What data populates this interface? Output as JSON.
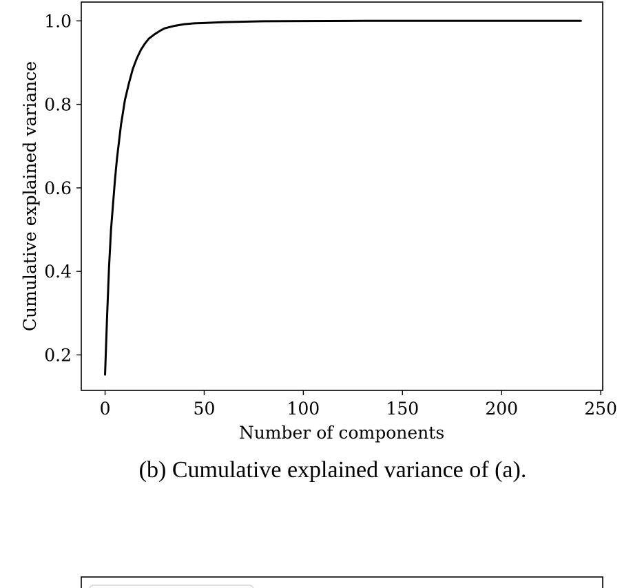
{
  "caption": "(b) Cumulative explained variance of (a).",
  "chart_data": {
    "type": "line",
    "title": "",
    "xlabel": "Number of components",
    "ylabel": "Cumulative explained variance",
    "xlim": [
      -12,
      251
    ],
    "ylim": [
      0.115,
      1.045
    ],
    "xticks": [
      0,
      50,
      100,
      150,
      200,
      250
    ],
    "yticks": [
      0.2,
      0.4,
      0.6,
      0.8,
      1.0
    ],
    "xtick_labels": [
      "0",
      "50",
      "100",
      "150",
      "200",
      "250"
    ],
    "ytick_labels": [
      "0.2",
      "0.4",
      "0.6",
      "0.8",
      "1.0"
    ],
    "grid": false,
    "series": [
      {
        "color": "#000000",
        "x": [
          0,
          1,
          2,
          3,
          4,
          5,
          6,
          7,
          8,
          9,
          10,
          12,
          14,
          16,
          18,
          20,
          22,
          25,
          28,
          30,
          35,
          40,
          45,
          50,
          60,
          70,
          80,
          100,
          130,
          160,
          200,
          240
        ],
        "y": [
          0.153,
          0.29,
          0.41,
          0.5,
          0.56,
          0.62,
          0.67,
          0.71,
          0.75,
          0.78,
          0.81,
          0.85,
          0.885,
          0.91,
          0.93,
          0.945,
          0.957,
          0.968,
          0.977,
          0.982,
          0.988,
          0.992,
          0.994,
          0.995,
          0.997,
          0.998,
          0.999,
          0.9995,
          1.0,
          1.0,
          1.0,
          1.0
        ]
      }
    ]
  }
}
